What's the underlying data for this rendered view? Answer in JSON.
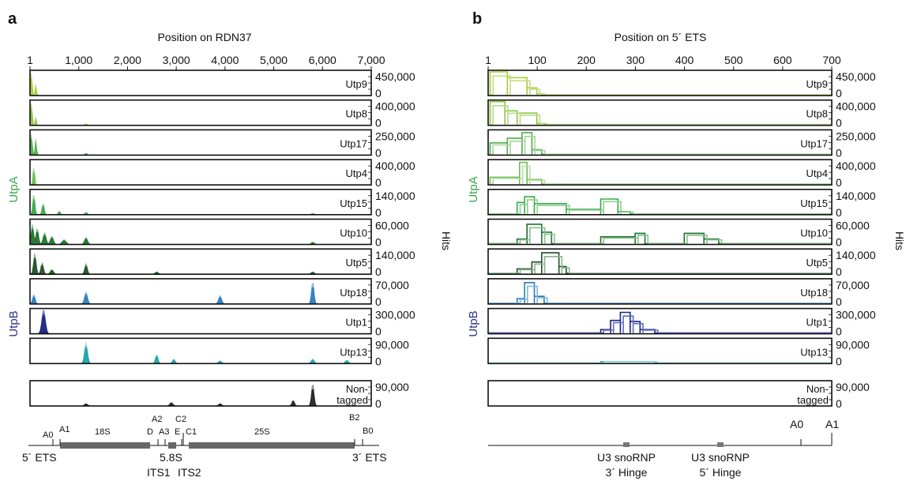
{
  "colors": {
    "utpA_label": "#3aa84a",
    "utpB_label": "#2e3192",
    "utp9": [
      "#a6ce39",
      "#c5dd86"
    ],
    "utp8": [
      "#8dc63f",
      "#b9d98a"
    ],
    "utp17": [
      "#4daf4a",
      "#a9d49c"
    ],
    "utp4": [
      "#6cbf4a",
      "#b5dcaa"
    ],
    "utp15": [
      "#3aa84a",
      "#8fcf8f"
    ],
    "utp10": [
      "#1f6f2e",
      "#86c48a"
    ],
    "utp5": [
      "#1e4d24",
      "#88b58e"
    ],
    "utp18": [
      "#2b7bbf",
      "#7fb6e2"
    ],
    "utp1": [
      "#1a237e",
      "#5c6bc0"
    ],
    "utp13": [
      "#1aa0a8",
      "#a6dde8"
    ],
    "nontagged": [
      "#222222",
      "#8a8a8a"
    ]
  },
  "panel_a": {
    "letter": "a",
    "title": "Position on RDN37",
    "ticks": [
      "1",
      "1,000",
      "2,000",
      "3,000",
      "4,000",
      "5,000",
      "6,000",
      "7,000"
    ],
    "group_utpA": "UtpA",
    "group_utpB": "UtpB",
    "hits": "Hits",
    "annotation": {
      "A0": "A0",
      "A1": "A1",
      "r18S": "18S",
      "D": "D",
      "A2": "A2",
      "A3": "A3",
      "E": "E",
      "C2": "C2",
      "C1": "C1",
      "r25S": "25S",
      "B2": "B2",
      "B0": "B0",
      "ets5": "5´ ETS",
      "r58S": "5.8S",
      "ets3": "3´ ETS",
      "its1": "ITS1",
      "its2": "ITS2"
    }
  },
  "panel_b": {
    "letter": "b",
    "title": "Position on 5´ ETS",
    "ticks": [
      "1",
      "100",
      "200",
      "300",
      "400",
      "500",
      "600",
      "700"
    ],
    "hits": "Hits",
    "annotation": {
      "A0": "A0",
      "A1": "A1",
      "hinge3_line1": "U3 snoRNP",
      "hinge3_line2": "3´ Hinge",
      "hinge5_line1": "U3 snoRNP",
      "hinge5_line2": "5´ Hinge"
    }
  },
  "tracks": [
    {
      "name": "Utp9",
      "max": "450,000",
      "zero": "0"
    },
    {
      "name": "Utp8",
      "max": "400,000",
      "zero": "0"
    },
    {
      "name": "Utp17",
      "max": "250,000",
      "zero": "0"
    },
    {
      "name": "Utp4",
      "max": "400,000",
      "zero": "0"
    },
    {
      "name": "Utp15",
      "max": "140,000",
      "zero": "0"
    },
    {
      "name": "Utp10",
      "max": "60,000",
      "zero": "0"
    },
    {
      "name": "Utp5",
      "max": "140,000",
      "zero": "0"
    },
    {
      "name": "Utp18",
      "max": "70,000",
      "zero": "0"
    },
    {
      "name": "Utp1",
      "max": "300,000",
      "zero": "0"
    },
    {
      "name": "Utp13",
      "max": "90,000",
      "zero": "0"
    }
  ],
  "nontagged": {
    "line1": "Non-",
    "line2": "tagged",
    "max": "90,000",
    "zero": "0"
  },
  "chart_data": [
    {
      "type": "area",
      "title": "Position on RDN37",
      "xlabel": "Position on RDN37",
      "ylabel": "Hits",
      "xlim": [
        1,
        7000
      ],
      "series": [
        {
          "name": "Utp9",
          "ymax": 450000,
          "peaks": [
            [
              30,
              1.0,
              15
            ],
            [
              120,
              0.5,
              12
            ]
          ]
        },
        {
          "name": "Utp8",
          "ymax": 400000,
          "peaks": [
            [
              30,
              1.0,
              15
            ],
            [
              120,
              0.35,
              12
            ],
            [
              1150,
              0.06,
              25
            ]
          ]
        },
        {
          "name": "Utp17",
          "ymax": 250000,
          "peaks": [
            [
              30,
              0.95,
              15
            ],
            [
              120,
              0.7,
              14
            ],
            [
              1150,
              0.08,
              25
            ]
          ]
        },
        {
          "name": "Utp4",
          "ymax": 400000,
          "peaks": [
            [
              80,
              0.85,
              15
            ]
          ]
        },
        {
          "name": "Utp15",
          "ymax": 140000,
          "peaks": [
            [
              80,
              0.9,
              20
            ],
            [
              270,
              0.5,
              20
            ],
            [
              600,
              0.15,
              20
            ],
            [
              1150,
              0.1,
              25
            ],
            [
              5800,
              0.05,
              30
            ]
          ]
        },
        {
          "name": "Utp10",
          "ymax": 60000,
          "peaks": [
            [
              50,
              0.85,
              25
            ],
            [
              150,
              0.7,
              25
            ],
            [
              300,
              0.5,
              30
            ],
            [
              450,
              0.35,
              30
            ],
            [
              700,
              0.2,
              40
            ],
            [
              1150,
              0.3,
              30
            ],
            [
              5800,
              0.1,
              30
            ]
          ]
        },
        {
          "name": "Utp5",
          "ymax": 140000,
          "peaks": [
            [
              100,
              0.9,
              25
            ],
            [
              250,
              0.5,
              25
            ],
            [
              450,
              0.2,
              30
            ],
            [
              1150,
              0.45,
              25
            ],
            [
              2600,
              0.1,
              30
            ],
            [
              5800,
              0.1,
              30
            ]
          ]
        },
        {
          "name": "Utp18",
          "ymax": 70000,
          "peaks": [
            [
              80,
              0.4,
              25
            ],
            [
              1150,
              0.5,
              30
            ],
            [
              3900,
              0.35,
              30
            ],
            [
              5800,
              0.95,
              25
            ]
          ]
        },
        {
          "name": "Utp1",
          "ymax": 300000,
          "peaks": [
            [
              280,
              1.0,
              35
            ]
          ]
        },
        {
          "name": "Utp13",
          "ymax": 90000,
          "peaks": [
            [
              1150,
              0.9,
              30
            ],
            [
              2600,
              0.4,
              25
            ],
            [
              2950,
              0.2,
              25
            ],
            [
              3900,
              0.12,
              30
            ],
            [
              5800,
              0.2,
              30
            ],
            [
              6500,
              0.15,
              30
            ]
          ]
        },
        {
          "name": "Non-tagged",
          "ymax": 90000,
          "peaks": [
            [
              1150,
              0.1,
              30
            ],
            [
              2900,
              0.15,
              30
            ],
            [
              3900,
              0.1,
              30
            ],
            [
              5400,
              0.25,
              25
            ],
            [
              5800,
              0.95,
              25
            ]
          ]
        }
      ]
    },
    {
      "type": "line",
      "title": "Position on 5´ ETS",
      "xlabel": "Position on 5´ ETS",
      "ylabel": "Hits",
      "xlim": [
        1,
        700
      ],
      "series": [
        {
          "name": "Utp9",
          "ymax": 450000,
          "steps": [
            [
              5,
              1.0,
              40
            ],
            [
              40,
              0.75,
              80
            ],
            [
              80,
              0.3,
              100
            ],
            [
              100,
              0.05,
              110
            ]
          ]
        },
        {
          "name": "Utp8",
          "ymax": 400000,
          "steps": [
            [
              5,
              1.0,
              35
            ],
            [
              35,
              0.6,
              60
            ],
            [
              60,
              0.5,
              100
            ],
            [
              100,
              0.05,
              115
            ]
          ]
        },
        {
          "name": "Utp17",
          "ymax": 250000,
          "steps": [
            [
              5,
              0.5,
              40
            ],
            [
              40,
              0.7,
              70
            ],
            [
              70,
              0.95,
              90
            ],
            [
              90,
              0.2,
              110
            ]
          ]
        },
        {
          "name": "Utp4",
          "ymax": 400000,
          "steps": [
            [
              5,
              0.3,
              65
            ],
            [
              65,
              0.95,
              80
            ],
            [
              80,
              0.2,
              110
            ]
          ]
        },
        {
          "name": "Utp15",
          "ymax": 140000,
          "steps": [
            [
              60,
              0.5,
              75
            ],
            [
              75,
              0.75,
              95
            ],
            [
              95,
              0.45,
              160
            ],
            [
              160,
              0.2,
              230
            ],
            [
              230,
              0.65,
              265
            ],
            [
              265,
              0.1,
              290
            ]
          ]
        },
        {
          "name": "Utp10",
          "ymax": 60000,
          "steps": [
            [
              60,
              0.2,
              80
            ],
            [
              80,
              0.85,
              110
            ],
            [
              110,
              0.5,
              130
            ],
            [
              230,
              0.3,
              300
            ],
            [
              300,
              0.45,
              320
            ],
            [
              400,
              0.45,
              440
            ],
            [
              440,
              0.2,
              470
            ]
          ]
        },
        {
          "name": "Utp5",
          "ymax": 140000,
          "steps": [
            [
              60,
              0.2,
              90
            ],
            [
              90,
              0.5,
              110
            ],
            [
              110,
              0.9,
              145
            ],
            [
              145,
              0.3,
              160
            ]
          ]
        },
        {
          "name": "Utp18",
          "ymax": 70000,
          "steps": [
            [
              60,
              0.2,
              75
            ],
            [
              75,
              0.9,
              95
            ],
            [
              95,
              0.3,
              115
            ]
          ]
        },
        {
          "name": "Utp1",
          "ymax": 300000,
          "steps": [
            [
              230,
              0.15,
              250
            ],
            [
              250,
              0.55,
              270
            ],
            [
              270,
              0.9,
              290
            ],
            [
              290,
              0.5,
              310
            ],
            [
              310,
              0.15,
              340
            ]
          ]
        },
        {
          "name": "Utp13",
          "ymax": 90000,
          "steps": [
            [
              230,
              0.05,
              340
            ]
          ]
        },
        {
          "name": "Non-tagged",
          "ymax": 90000,
          "steps": []
        }
      ]
    }
  ]
}
